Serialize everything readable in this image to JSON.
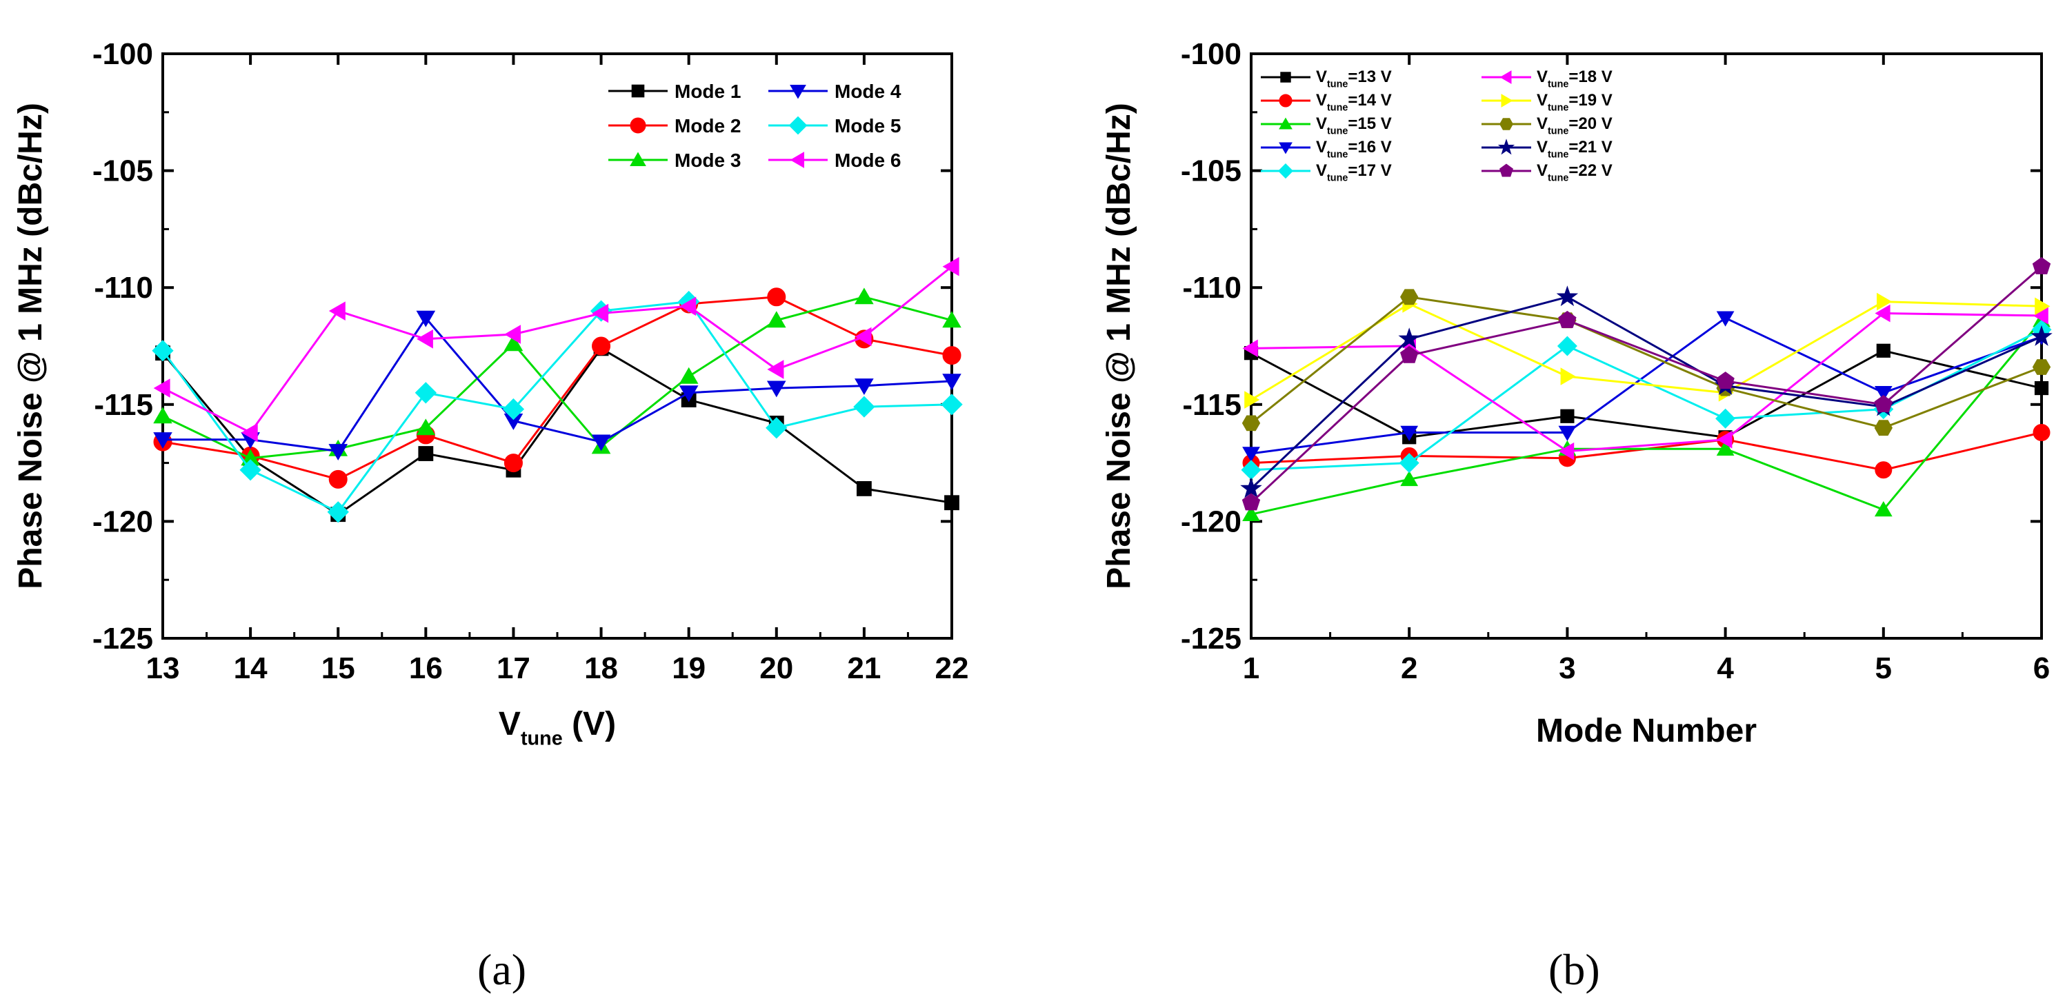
{
  "panel_labels": {
    "a": "(a)",
    "b": "(b)"
  },
  "chart_data": [
    {
      "type": "line",
      "ylabel": "Phase Noise @ 1 MHz (dBc/Hz)",
      "xlabel": {
        "main": "V",
        "sub": "tune",
        "suffix": " (V)"
      },
      "xlim": [
        13,
        22
      ],
      "ylim": [
        -125,
        -100
      ],
      "xticks": [
        13,
        14,
        15,
        16,
        17,
        18,
        19,
        20,
        21,
        22
      ],
      "yticks": [
        -125,
        -120,
        -115,
        -110,
        -105,
        -100
      ],
      "grid": false,
      "legend_position": "top-right",
      "x": [
        13,
        14,
        15,
        16,
        17,
        18,
        19,
        20,
        21,
        22
      ],
      "series": [
        {
          "name": "Mode 1",
          "color": "#000000",
          "marker": "square",
          "values": [
            -112.8,
            -117.3,
            -119.7,
            -117.1,
            -117.8,
            -112.6,
            -114.8,
            -115.8,
            -118.6,
            -119.2
          ]
        },
        {
          "name": "Mode 2",
          "color": "#ff0000",
          "marker": "circle",
          "values": [
            -116.6,
            -117.2,
            -118.2,
            -116.3,
            -117.5,
            -112.5,
            -110.7,
            -110.4,
            -112.2,
            -112.9
          ]
        },
        {
          "name": "Mode 3",
          "color": "#00dd00",
          "marker": "triangle-up",
          "values": [
            -115.5,
            -117.3,
            -116.9,
            -116.0,
            -112.4,
            -116.8,
            -113.8,
            -111.4,
            -110.4,
            -111.4
          ]
        },
        {
          "name": "Mode 4",
          "color": "#0000dd",
          "marker": "triangle-down",
          "values": [
            -116.5,
            -116.5,
            -117.0,
            -111.3,
            -115.7,
            -116.6,
            -114.5,
            -114.3,
            -114.2,
            -114.0
          ]
        },
        {
          "name": "Mode 5",
          "color": "#00eeee",
          "marker": "diamond",
          "values": [
            -112.7,
            -117.8,
            -119.6,
            -114.5,
            -115.2,
            -111.0,
            -110.6,
            -116.0,
            -115.1,
            -115.0
          ]
        },
        {
          "name": "Mode 6",
          "color": "#ff00ff",
          "marker": "triangle-left",
          "values": [
            -114.3,
            -116.2,
            -111.0,
            -112.2,
            -112.0,
            -111.1,
            -110.8,
            -113.5,
            -112.1,
            -109.1
          ]
        }
      ]
    },
    {
      "type": "line",
      "ylabel": "Phase Noise @ 1 MHz (dBc/Hz)",
      "xlabel": "Mode Number",
      "xlim": [
        1,
        6
      ],
      "ylim": [
        -125,
        -100
      ],
      "xticks": [
        1,
        2,
        3,
        4,
        5,
        6
      ],
      "yticks": [
        -125,
        -120,
        -115,
        -110,
        -105,
        -100
      ],
      "grid": false,
      "legend_position": "top-left",
      "x": [
        1,
        2,
        3,
        4,
        5,
        6
      ],
      "series": [
        {
          "name_main": "V",
          "name_sub": "tune",
          "name_suffix": "=13 V",
          "color": "#000000",
          "marker": "square",
          "values": [
            -112.8,
            -116.4,
            -115.5,
            -116.4,
            -112.7,
            -114.3
          ]
        },
        {
          "name_main": "V",
          "name_sub": "tune",
          "name_suffix": "=14 V",
          "color": "#ff0000",
          "marker": "circle",
          "values": [
            -117.5,
            -117.2,
            -117.3,
            -116.5,
            -117.8,
            -116.2
          ]
        },
        {
          "name_main": "V",
          "name_sub": "tune",
          "name_suffix": "=15 V",
          "color": "#00dd00",
          "marker": "triangle-up",
          "values": [
            -119.7,
            -118.2,
            -116.9,
            -116.9,
            -119.5,
            -111.4
          ]
        },
        {
          "name_main": "V",
          "name_sub": "tune",
          "name_suffix": "=16 V",
          "color": "#0000dd",
          "marker": "triangle-down",
          "values": [
            -117.1,
            -116.2,
            -116.2,
            -111.3,
            -114.5,
            -112.1
          ]
        },
        {
          "name_main": "V",
          "name_sub": "tune",
          "name_suffix": "=17 V",
          "color": "#00eeee",
          "marker": "diamond",
          "values": [
            -117.8,
            -117.5,
            -112.5,
            -115.6,
            -115.2,
            -111.8
          ]
        },
        {
          "name_main": "V",
          "name_sub": "tune",
          "name_suffix": "=18 V",
          "color": "#ff00ff",
          "marker": "triangle-left",
          "values": [
            -112.6,
            -112.5,
            -117.0,
            -116.5,
            -111.1,
            -111.2
          ]
        },
        {
          "name_main": "V",
          "name_sub": "tune",
          "name_suffix": "=19 V",
          "color": "#ffff00",
          "marker": "triangle-right",
          "values": [
            -114.8,
            -110.7,
            -113.8,
            -114.5,
            -110.6,
            -110.8
          ]
        },
        {
          "name_main": "V",
          "name_sub": "tune",
          "name_suffix": "=20 V",
          "color": "#808000",
          "marker": "hexagon",
          "values": [
            -115.8,
            -110.4,
            -111.4,
            -114.3,
            -116.0,
            -113.4
          ]
        },
        {
          "name_main": "V",
          "name_sub": "tune",
          "name_suffix": "=21 V",
          "color": "#000080",
          "marker": "star",
          "values": [
            -118.6,
            -112.2,
            -110.4,
            -114.2,
            -115.1,
            -112.1
          ]
        },
        {
          "name_main": "V",
          "name_sub": "tune",
          "name_suffix": "=22 V",
          "color": "#800080",
          "marker": "pentagon",
          "values": [
            -119.2,
            -112.9,
            -111.4,
            -114.0,
            -115.0,
            -109.1
          ]
        }
      ]
    }
  ]
}
